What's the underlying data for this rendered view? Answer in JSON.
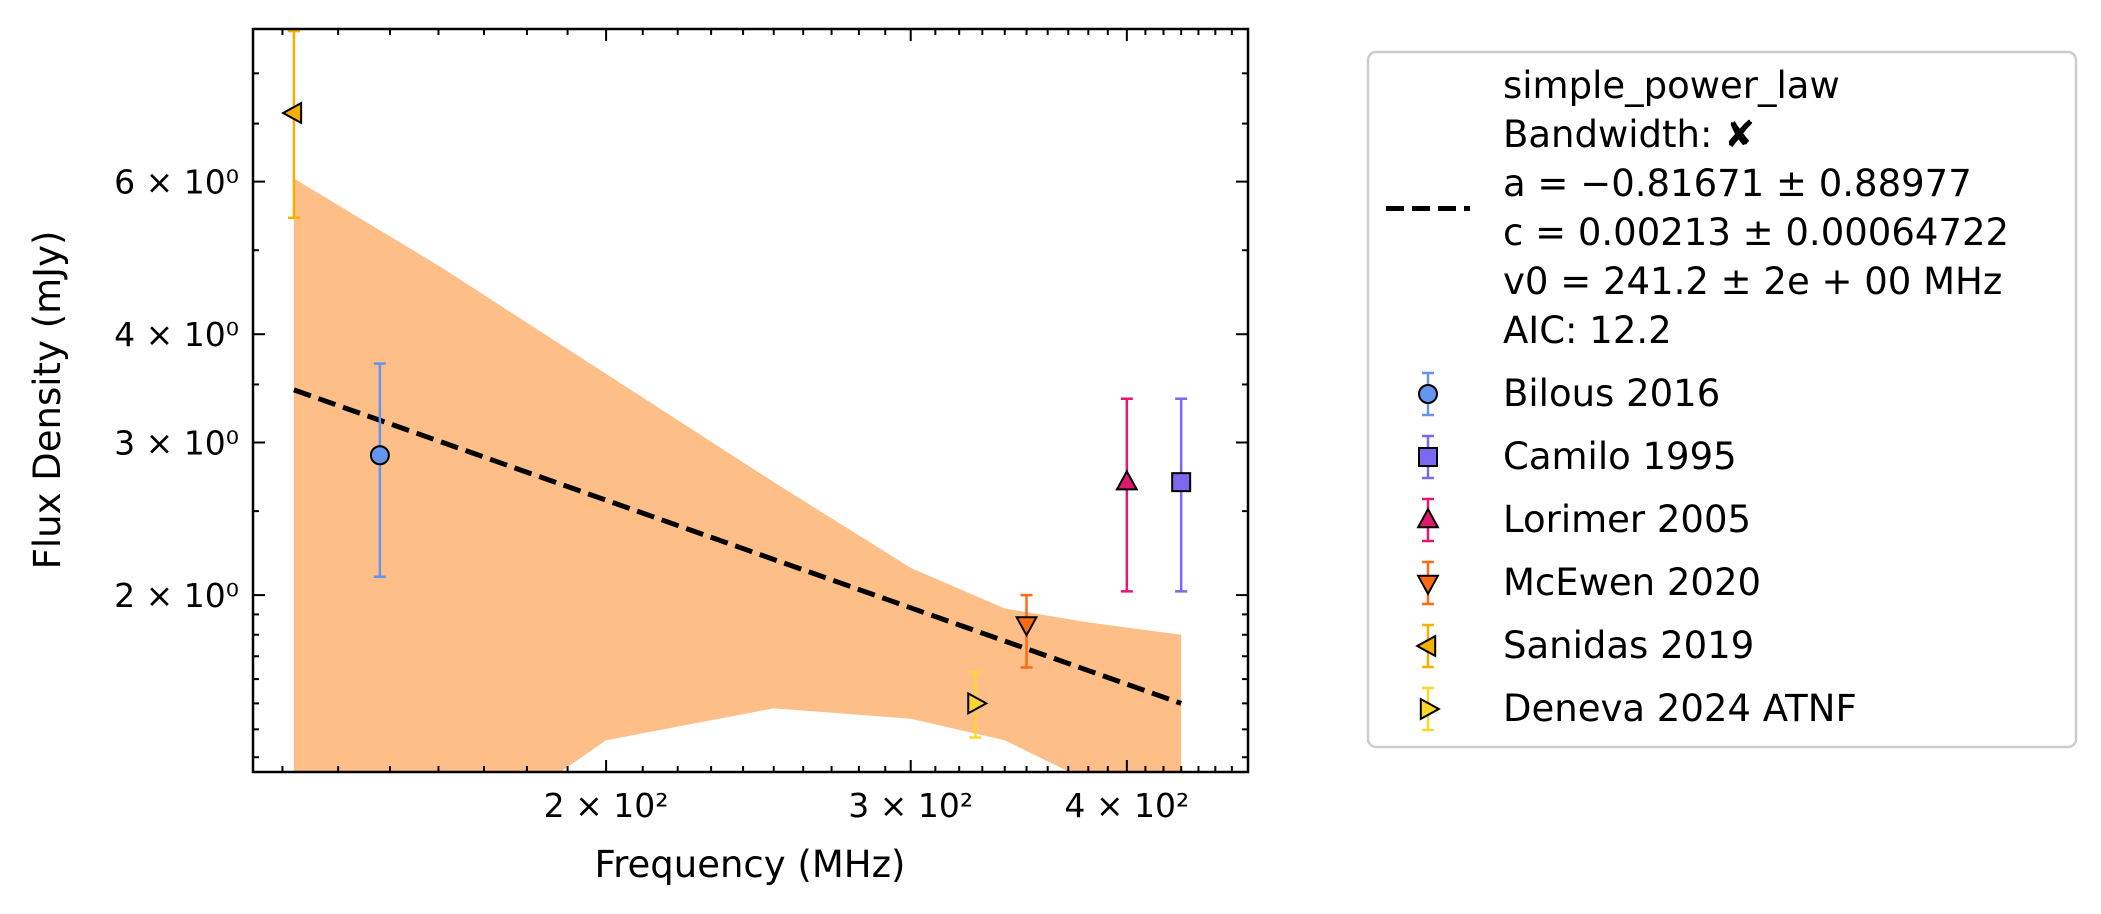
{
  "chart_data": {
    "type": "scatter",
    "title": "",
    "xlabel": "Frequency (MHz)",
    "ylabel": "Flux Density (mJy)",
    "x_scale": "log",
    "y_scale": "log",
    "xlim": [
      125,
      470
    ],
    "ylim": [
      1.25,
      9.0
    ],
    "grid": false,
    "legend_position": "outside-right",
    "x_ticks": [
      {
        "value": 200,
        "label": "2 × 10²"
      },
      {
        "value": 300,
        "label": "3 × 10²"
      },
      {
        "value": 400,
        "label": "4 × 10²"
      }
    ],
    "y_ticks": [
      {
        "value": 2,
        "label": "2 × 10⁰"
      },
      {
        "value": 3,
        "label": "3 × 10⁰"
      },
      {
        "value": 4,
        "label": "4 × 10⁰"
      },
      {
        "value": 6,
        "label": "6 × 10⁰"
      }
    ],
    "fit": {
      "model": "simple_power_law",
      "legend_lines": [
        "simple_power_law",
        "Bandwidth: ✘",
        "a = −0.81671 ± 0.88977",
        "c = 0.00213 ± 0.00064722",
        "v0 = 241.2 ± 2e + 00 MHz",
        "AIC: 12.2"
      ],
      "color": "#000000",
      "band_color": "#fdbf87",
      "line_x": [
        132,
        430
      ],
      "line_y": [
        3.45,
        1.5
      ],
      "band": {
        "x": [
          132,
          160,
          200,
          250,
          300,
          340,
          380,
          430
        ],
        "upper": [
          6.05,
          4.8,
          3.6,
          2.7,
          2.15,
          1.93,
          1.86,
          1.8
        ],
        "lower": [
          1.0,
          1.0,
          1.36,
          1.48,
          1.44,
          1.36,
          1.22,
          1.15
        ]
      }
    },
    "series": [
      {
        "name": "Bilous 2016",
        "marker": "circle",
        "color": "#6495ed",
        "points": [
          {
            "x": 148,
            "y": 2.9,
            "y_low": 2.1,
            "y_high": 3.7
          }
        ]
      },
      {
        "name": "Camilo 1995",
        "marker": "square",
        "color": "#7b68ee",
        "points": [
          {
            "x": 430,
            "y": 2.7,
            "y_low": 2.02,
            "y_high": 3.37
          }
        ]
      },
      {
        "name": "Lorimer 2005",
        "marker": "triangle-up",
        "color": "#e0186e",
        "points": [
          {
            "x": 400,
            "y": 2.7,
            "y_low": 2.02,
            "y_high": 3.37
          }
        ]
      },
      {
        "name": "McEwen 2020",
        "marker": "triangle-down",
        "color": "#ff6a13",
        "points": [
          {
            "x": 350,
            "y": 1.85,
            "y_low": 1.65,
            "y_high": 2.0
          }
        ]
      },
      {
        "name": "Sanidas 2019",
        "marker": "triangle-left",
        "color": "#f5b000",
        "points": [
          {
            "x": 132,
            "y": 7.2,
            "y_low": 5.45,
            "y_high": 8.95
          }
        ]
      },
      {
        "name": "Deneva 2024 ATNF",
        "marker": "triangle-right",
        "color": "#f9d72e",
        "points": [
          {
            "x": 327,
            "y": 1.5,
            "y_low": 1.37,
            "y_high": 1.63
          }
        ]
      }
    ]
  }
}
